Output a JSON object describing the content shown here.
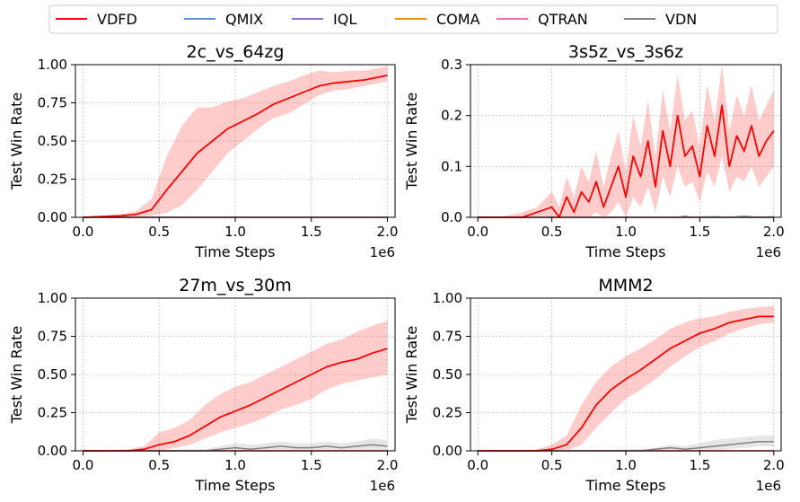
{
  "legend": {
    "entries": [
      {
        "label": "VDFD",
        "color": "#ff0000"
      },
      {
        "label": "QMIX",
        "color": "#5b8fe0"
      },
      {
        "label": "IQL",
        "color": "#9370db"
      },
      {
        "label": "COMA",
        "color": "#ff8c00"
      },
      {
        "label": "QTRAN",
        "color": "#ff69b4"
      },
      {
        "label": "VDN",
        "color": "#808080"
      }
    ],
    "placement": "top"
  },
  "chart_data": [
    {
      "type": "line",
      "title": "2c_vs_64zg",
      "xlabel": "Time Steps",
      "ylabel": "Test Win Rate",
      "x_offset_label": "1e6",
      "xlim": [
        0,
        2.0
      ],
      "ylim": [
        0,
        1.0
      ],
      "xticks": [
        "0.0",
        "0.5",
        "1.0",
        "1.5",
        "2.0"
      ],
      "yticks": [
        "0.00",
        "0.25",
        "0.50",
        "0.75",
        "1.00"
      ],
      "grid": true,
      "series": [
        {
          "name": "VDFD",
          "color": "#ff0000",
          "shaded": true,
          "x": [
            0.0,
            0.25,
            0.35,
            0.45,
            0.55,
            0.65,
            0.75,
            0.85,
            0.95,
            1.05,
            1.15,
            1.25,
            1.35,
            1.45,
            1.55,
            1.65,
            1.75,
            1.85,
            1.95,
            2.0
          ],
          "y": [
            0.0,
            0.01,
            0.02,
            0.05,
            0.18,
            0.3,
            0.42,
            0.5,
            0.58,
            0.63,
            0.68,
            0.74,
            0.78,
            0.82,
            0.86,
            0.88,
            0.89,
            0.9,
            0.92,
            0.93
          ],
          "lower": [
            0.0,
            0.0,
            0.0,
            0.01,
            0.03,
            0.08,
            0.18,
            0.3,
            0.42,
            0.5,
            0.58,
            0.65,
            0.68,
            0.74,
            0.8,
            0.83,
            0.84,
            0.86,
            0.88,
            0.89
          ],
          "upper": [
            0.0,
            0.02,
            0.04,
            0.12,
            0.4,
            0.6,
            0.72,
            0.72,
            0.76,
            0.78,
            0.82,
            0.86,
            0.89,
            0.93,
            0.96,
            0.95,
            0.96,
            0.96,
            0.98,
            0.99
          ]
        },
        {
          "name": "QMIX",
          "color": "#5b8fe0",
          "x": [
            0.0,
            2.0
          ],
          "y": [
            0.0,
            0.0
          ]
        },
        {
          "name": "IQL",
          "color": "#9370db",
          "x": [
            0.0,
            2.0
          ],
          "y": [
            0.0,
            0.0
          ]
        },
        {
          "name": "COMA",
          "color": "#ff8c00",
          "x": [
            0.0,
            2.0
          ],
          "y": [
            0.0,
            0.0
          ]
        },
        {
          "name": "QTRAN",
          "color": "#ff69b4",
          "x": [
            0.0,
            2.0
          ],
          "y": [
            0.0,
            0.0
          ]
        },
        {
          "name": "VDN",
          "color": "#808080",
          "x": [
            0.0,
            2.0
          ],
          "y": [
            0.0,
            0.0
          ]
        }
      ]
    },
    {
      "type": "line",
      "title": "3s5z_vs_3s6z",
      "xlabel": "Time Steps",
      "ylabel": "Test Win Rate",
      "x_offset_label": "1e6",
      "xlim": [
        0,
        2.0
      ],
      "ylim": [
        0,
        0.3
      ],
      "xticks": [
        "0.0",
        "0.5",
        "1.0",
        "1.5",
        "2.0"
      ],
      "yticks": [
        "0.0",
        "0.1",
        "0.2",
        "0.3"
      ],
      "grid": true,
      "series": [
        {
          "name": "VDFD",
          "color": "#ff0000",
          "shaded": true,
          "x": [
            0.0,
            0.15,
            0.3,
            0.4,
            0.5,
            0.55,
            0.6,
            0.65,
            0.7,
            0.75,
            0.8,
            0.85,
            0.9,
            0.95,
            1.0,
            1.05,
            1.1,
            1.15,
            1.2,
            1.25,
            1.3,
            1.35,
            1.4,
            1.45,
            1.5,
            1.55,
            1.6,
            1.65,
            1.7,
            1.75,
            1.8,
            1.85,
            1.9,
            1.95,
            2.0
          ],
          "y": [
            0.0,
            0.0,
            0.0,
            0.01,
            0.02,
            0.0,
            0.04,
            0.01,
            0.05,
            0.03,
            0.07,
            0.02,
            0.06,
            0.1,
            0.04,
            0.12,
            0.08,
            0.15,
            0.06,
            0.17,
            0.1,
            0.2,
            0.12,
            0.14,
            0.08,
            0.18,
            0.12,
            0.22,
            0.1,
            0.16,
            0.13,
            0.18,
            0.12,
            0.15,
            0.17
          ],
          "lower": [
            0.0,
            0.0,
            0.0,
            0.0,
            0.0,
            0.0,
            0.0,
            0.0,
            0.0,
            0.0,
            0.01,
            0.0,
            0.01,
            0.03,
            0.0,
            0.04,
            0.02,
            0.06,
            0.01,
            0.08,
            0.04,
            0.1,
            0.06,
            0.07,
            0.03,
            0.09,
            0.06,
            0.12,
            0.05,
            0.08,
            0.07,
            0.1,
            0.06,
            0.08,
            0.1
          ],
          "upper": [
            0.0,
            0.0,
            0.01,
            0.02,
            0.05,
            0.02,
            0.08,
            0.04,
            0.1,
            0.07,
            0.13,
            0.06,
            0.12,
            0.17,
            0.09,
            0.2,
            0.14,
            0.23,
            0.12,
            0.25,
            0.17,
            0.28,
            0.19,
            0.21,
            0.14,
            0.26,
            0.19,
            0.3,
            0.17,
            0.24,
            0.2,
            0.26,
            0.19,
            0.22,
            0.25
          ]
        },
        {
          "name": "QMIX",
          "color": "#5b8fe0",
          "x": [
            0.0,
            2.0
          ],
          "y": [
            0.0,
            0.0
          ]
        },
        {
          "name": "IQL",
          "color": "#9370db",
          "x": [
            0.0,
            2.0
          ],
          "y": [
            0.0,
            0.0
          ]
        },
        {
          "name": "COMA",
          "color": "#ff8c00",
          "x": [
            0.0,
            2.0
          ],
          "y": [
            0.0,
            0.0
          ]
        },
        {
          "name": "QTRAN",
          "color": "#ff69b4",
          "x": [
            0.0,
            2.0
          ],
          "y": [
            0.0,
            0.0
          ]
        },
        {
          "name": "VDN",
          "color": "#808080",
          "x": [
            0.0,
            1.35,
            1.4,
            1.45,
            1.6,
            1.7,
            1.8,
            1.9,
            2.0
          ],
          "y": [
            0.0,
            0.0,
            0.002,
            0.0,
            0.001,
            0.0,
            0.002,
            0.0,
            0.001
          ]
        }
      ]
    },
    {
      "type": "line",
      "title": "27m_vs_30m",
      "xlabel": "Time Steps",
      "ylabel": "Test Win Rate",
      "x_offset_label": "1e6",
      "xlim": [
        0,
        2.0
      ],
      "ylim": [
        0,
        1.0
      ],
      "xticks": [
        "0.0",
        "0.5",
        "1.0",
        "1.5",
        "2.0"
      ],
      "yticks": [
        "0.00",
        "0.25",
        "0.50",
        "0.75",
        "1.00"
      ],
      "grid": true,
      "series": [
        {
          "name": "VDFD",
          "color": "#ff0000",
          "shaded": true,
          "x": [
            0.0,
            0.3,
            0.4,
            0.5,
            0.6,
            0.7,
            0.8,
            0.9,
            1.0,
            1.1,
            1.2,
            1.3,
            1.4,
            1.5,
            1.6,
            1.7,
            1.8,
            1.9,
            2.0
          ],
          "y": [
            0.0,
            0.0,
            0.01,
            0.04,
            0.06,
            0.1,
            0.16,
            0.22,
            0.26,
            0.3,
            0.35,
            0.4,
            0.45,
            0.5,
            0.55,
            0.58,
            0.6,
            0.64,
            0.67
          ],
          "lower": [
            0.0,
            0.0,
            0.0,
            0.0,
            0.02,
            0.04,
            0.08,
            0.12,
            0.15,
            0.18,
            0.22,
            0.27,
            0.3,
            0.34,
            0.4,
            0.44,
            0.46,
            0.48,
            0.5
          ],
          "upper": [
            0.0,
            0.01,
            0.03,
            0.12,
            0.15,
            0.2,
            0.3,
            0.37,
            0.42,
            0.45,
            0.5,
            0.55,
            0.6,
            0.65,
            0.7,
            0.73,
            0.78,
            0.82,
            0.85
          ]
        },
        {
          "name": "QMIX",
          "color": "#5b8fe0",
          "x": [
            0.0,
            2.0
          ],
          "y": [
            0.0,
            0.0
          ]
        },
        {
          "name": "IQL",
          "color": "#9370db",
          "x": [
            0.0,
            2.0
          ],
          "y": [
            0.0,
            0.0
          ]
        },
        {
          "name": "COMA",
          "color": "#ff8c00",
          "x": [
            0.0,
            2.0
          ],
          "y": [
            0.0,
            0.0
          ]
        },
        {
          "name": "QTRAN",
          "color": "#ff69b4",
          "x": [
            0.0,
            2.0
          ],
          "y": [
            0.0,
            0.0
          ]
        },
        {
          "name": "VDN",
          "color": "#808080",
          "shaded": true,
          "x": [
            0.0,
            0.8,
            0.9,
            1.0,
            1.1,
            1.2,
            1.3,
            1.4,
            1.5,
            1.6,
            1.7,
            1.8,
            1.9,
            2.0
          ],
          "y": [
            0.0,
            0.0,
            0.01,
            0.02,
            0.01,
            0.02,
            0.03,
            0.02,
            0.02,
            0.03,
            0.02,
            0.03,
            0.04,
            0.03
          ],
          "lower": [
            0.0,
            0.0,
            0.0,
            0.0,
            0.0,
            0.0,
            0.0,
            0.0,
            0.0,
            0.0,
            0.0,
            0.0,
            0.0,
            0.0
          ],
          "upper": [
            0.0,
            0.01,
            0.03,
            0.05,
            0.04,
            0.05,
            0.06,
            0.05,
            0.05,
            0.06,
            0.05,
            0.06,
            0.08,
            0.07
          ]
        }
      ]
    },
    {
      "type": "line",
      "title": "MMM2",
      "xlabel": "Time Steps",
      "ylabel": "Test Win Rate",
      "x_offset_label": "1e6",
      "xlim": [
        0,
        2.0
      ],
      "ylim": [
        0,
        1.0
      ],
      "xticks": [
        "0.0",
        "0.5",
        "1.0",
        "1.5",
        "2.0"
      ],
      "yticks": [
        "0.00",
        "0.25",
        "0.50",
        "0.75",
        "1.00"
      ],
      "grid": true,
      "series": [
        {
          "name": "VDFD",
          "color": "#ff0000",
          "shaded": true,
          "x": [
            0.0,
            0.3,
            0.4,
            0.5,
            0.6,
            0.7,
            0.8,
            0.9,
            1.0,
            1.1,
            1.2,
            1.3,
            1.4,
            1.5,
            1.6,
            1.7,
            1.8,
            1.9,
            2.0
          ],
          "y": [
            0.0,
            0.0,
            0.0,
            0.01,
            0.04,
            0.15,
            0.3,
            0.4,
            0.47,
            0.53,
            0.6,
            0.67,
            0.72,
            0.77,
            0.8,
            0.84,
            0.86,
            0.88,
            0.88
          ],
          "lower": [
            0.0,
            0.0,
            0.0,
            0.0,
            0.0,
            0.04,
            0.15,
            0.25,
            0.34,
            0.4,
            0.47,
            0.55,
            0.62,
            0.68,
            0.72,
            0.77,
            0.8,
            0.83,
            0.84
          ],
          "upper": [
            0.0,
            0.0,
            0.01,
            0.04,
            0.1,
            0.3,
            0.45,
            0.55,
            0.62,
            0.67,
            0.73,
            0.8,
            0.84,
            0.87,
            0.88,
            0.91,
            0.93,
            0.94,
            0.95
          ]
        },
        {
          "name": "QMIX",
          "color": "#5b8fe0",
          "x": [
            0.0,
            2.0
          ],
          "y": [
            0.0,
            0.0
          ]
        },
        {
          "name": "IQL",
          "color": "#9370db",
          "x": [
            0.0,
            2.0
          ],
          "y": [
            0.0,
            0.0
          ]
        },
        {
          "name": "COMA",
          "color": "#ff8c00",
          "x": [
            0.0,
            2.0
          ],
          "y": [
            0.0,
            0.0
          ]
        },
        {
          "name": "QTRAN",
          "color": "#ff69b4",
          "x": [
            0.0,
            2.0
          ],
          "y": [
            0.0,
            0.0
          ]
        },
        {
          "name": "VDN",
          "color": "#808080",
          "shaded": true,
          "x": [
            0.0,
            1.1,
            1.2,
            1.3,
            1.4,
            1.5,
            1.6,
            1.7,
            1.8,
            1.9,
            2.0
          ],
          "y": [
            0.0,
            0.0,
            0.01,
            0.02,
            0.01,
            0.02,
            0.03,
            0.04,
            0.05,
            0.06,
            0.06
          ],
          "lower": [
            0.0,
            0.0,
            0.0,
            0.0,
            0.0,
            0.0,
            0.0,
            0.01,
            0.02,
            0.03,
            0.03
          ],
          "upper": [
            0.0,
            0.01,
            0.02,
            0.04,
            0.03,
            0.05,
            0.07,
            0.08,
            0.09,
            0.1,
            0.1
          ]
        }
      ]
    }
  ]
}
